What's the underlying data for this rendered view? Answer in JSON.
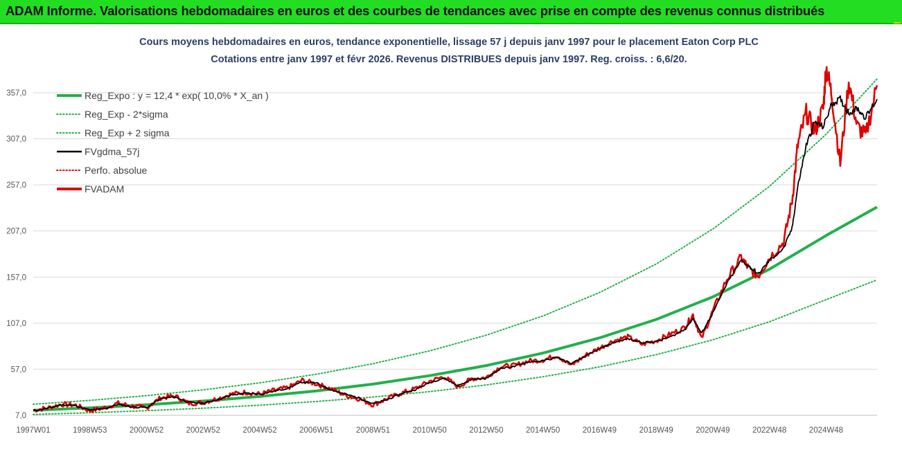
{
  "header": {
    "title": "ADAM Informe. Valorisations hebdomadaires en euros et des courbes de tendances avec prise en compte des revenus connus distribués"
  },
  "chart_data": {
    "type": "line",
    "title_lines": [
      "Cours moyens hebdomadaires en euros, tendance exponentielle, lissage 57 j depuis janv 1997 pour le placement Eaton Corp PLC",
      "Cotations entre janv 1997 et févr 2026. Revenus DISTRIBUES depuis janv 1997. Reg. croiss. : 6,6/20."
    ],
    "y_ticks": [
      "7,0",
      "57,0",
      "107,0",
      "157,0",
      "207,0",
      "257,0",
      "307,0",
      "357,0"
    ],
    "ylim": [
      7,
      390
    ],
    "x_ticks": [
      {
        "label": "1997W01",
        "t": 1997.0
      },
      {
        "label": "1998W53",
        "t": 1999.0
      },
      {
        "label": "2000W52",
        "t": 2001.0
      },
      {
        "label": "2002W52",
        "t": 2003.0
      },
      {
        "label": "2004W52",
        "t": 2005.0
      },
      {
        "label": "2006W51",
        "t": 2007.0
      },
      {
        "label": "2008W51",
        "t": 2009.0
      },
      {
        "label": "2010W50",
        "t": 2011.0
      },
      {
        "label": "2012W50",
        "t": 2013.0
      },
      {
        "label": "2014W50",
        "t": 2015.0
      },
      {
        "label": "2016W49",
        "t": 2017.0
      },
      {
        "label": "2018W49",
        "t": 2019.0
      },
      {
        "label": "2020W49",
        "t": 2021.0
      },
      {
        "label": "2022W48",
        "t": 2023.0
      },
      {
        "label": "2024W48",
        "t": 2025.0
      }
    ],
    "xlim": [
      1997.0,
      2026.8
    ],
    "grid": "horizontal",
    "legend_position": "top-left",
    "legend": [
      {
        "label": "Reg_Expo : y = 12,4 * exp( 10,0% *  X_an )",
        "color": "#22b04b",
        "style": "solid-thick"
      },
      {
        "label": "Reg_Exp - 2*sigma",
        "color": "#22b04b",
        "style": "dotted"
      },
      {
        "label": "Reg_Exp + 2 sigma",
        "color": "#22b04b",
        "style": "dotted"
      },
      {
        "label": "FVgdma_57j",
        "color": "#000000",
        "style": "solid"
      },
      {
        "label": "Perfo. absolue",
        "color": "#e00000",
        "style": "dotted"
      },
      {
        "label": "FVADAM",
        "color": "#e00000",
        "style": "solid-thick"
      }
    ],
    "series": [
      {
        "name": "Reg_Expo : y = 12,4 * exp( 10,0% *  X_an )",
        "x": [
          1997.0,
          1999.0,
          2001.0,
          2003.0,
          2005.0,
          2007.0,
          2009.0,
          2011.0,
          2013.0,
          2015.0,
          2017.0,
          2019.0,
          2021.0,
          2023.0,
          2025.0,
          2026.8
        ],
        "y": [
          12.4,
          15.1,
          18.4,
          22.5,
          27.5,
          33.5,
          40.9,
          50.0,
          61.0,
          74.5,
          91.0,
          111.0,
          135.5,
          165.5,
          202.0,
          233.0
        ]
      },
      {
        "name": "Reg_Exp - 2*sigma",
        "x": [
          1997.0,
          1999.0,
          2001.0,
          2003.0,
          2005.0,
          2007.0,
          2009.0,
          2011.0,
          2013.0,
          2015.0,
          2017.0,
          2019.0,
          2021.0,
          2023.0,
          2025.0,
          2026.8
        ],
        "y": [
          8.0,
          9.8,
          12.0,
          14.7,
          18.0,
          22.0,
          26.8,
          32.7,
          40.0,
          48.8,
          59.6,
          72.8,
          88.9,
          108.5,
          132.5,
          154.0
        ]
      },
      {
        "name": "Reg_Exp + 2 sigma",
        "x": [
          1997.0,
          1999.0,
          2001.0,
          2003.0,
          2005.0,
          2007.0,
          2009.0,
          2011.0,
          2013.0,
          2015.0,
          2017.0,
          2019.0,
          2021.0,
          2023.0,
          2025.0,
          2026.8
        ],
        "y": [
          19.0,
          23.2,
          28.3,
          34.6,
          42.2,
          51.6,
          63.0,
          76.9,
          94.0,
          114.8,
          140.2,
          171.2,
          209.1,
          255.4,
          311.9,
          372.0
        ]
      },
      {
        "name": "FVgdma_57j",
        "x": [
          1997.0,
          1997.5,
          1998.0,
          1998.5,
          1999.0,
          1999.5,
          2000.0,
          2000.5,
          2001.0,
          2001.5,
          2002.0,
          2002.5,
          2003.0,
          2003.5,
          2004.0,
          2004.5,
          2005.0,
          2005.5,
          2006.0,
          2006.5,
          2007.0,
          2007.5,
          2008.0,
          2008.5,
          2009.0,
          2009.5,
          2010.0,
          2010.5,
          2011.0,
          2011.5,
          2012.0,
          2012.5,
          2013.0,
          2013.5,
          2014.0,
          2014.5,
          2015.0,
          2015.5,
          2016.0,
          2016.5,
          2017.0,
          2017.5,
          2018.0,
          2018.5,
          2019.0,
          2019.5,
          2020.0,
          2020.3,
          2020.6,
          2021.0,
          2021.5,
          2022.0,
          2022.3,
          2022.6,
          2023.0,
          2023.5,
          2023.8,
          2024.0,
          2024.3,
          2024.6,
          2024.9,
          2025.2,
          2025.5,
          2025.8,
          2026.1,
          2026.4,
          2026.8
        ],
        "y": [
          12.0,
          14.5,
          18.5,
          17.5,
          12.5,
          14.0,
          19.0,
          16.0,
          15.5,
          25.0,
          27.0,
          21.0,
          20.0,
          24.0,
          29.0,
          31.0,
          30.0,
          33.0,
          36.5,
          43.0,
          42.0,
          35.0,
          30.0,
          26.0,
          19.5,
          24.0,
          30.5,
          35.0,
          42.5,
          47.5,
          39.0,
          46.0,
          47.0,
          58.0,
          60.0,
          65.0,
          66.0,
          70.0,
          63.0,
          71.0,
          79.0,
          86.0,
          90.0,
          86.0,
          87.0,
          92.0,
          100.0,
          112.0,
          96.0,
          118.0,
          150.0,
          175.0,
          168.0,
          160.0,
          175.0,
          188.0,
          210.0,
          255.0,
          300.0,
          325.0,
          320.0,
          345.0,
          350.0,
          335.0,
          340.0,
          330.0,
          350.0
        ]
      },
      {
        "name": "FVADAM",
        "x": [
          1997.0,
          1997.5,
          1998.0,
          1998.5,
          1999.0,
          1999.5,
          2000.0,
          2000.5,
          2001.0,
          2001.5,
          2002.0,
          2002.5,
          2003.0,
          2003.5,
          2004.0,
          2004.5,
          2005.0,
          2005.5,
          2006.0,
          2006.5,
          2007.0,
          2007.5,
          2008.0,
          2008.5,
          2009.0,
          2009.5,
          2010.0,
          2010.5,
          2011.0,
          2011.5,
          2012.0,
          2012.5,
          2013.0,
          2013.5,
          2014.0,
          2014.5,
          2015.0,
          2015.5,
          2016.0,
          2016.5,
          2017.0,
          2017.5,
          2018.0,
          2018.5,
          2019.0,
          2019.5,
          2020.0,
          2020.3,
          2020.6,
          2021.0,
          2021.5,
          2022.0,
          2022.3,
          2022.6,
          2023.0,
          2023.5,
          2023.8,
          2024.0,
          2024.3,
          2024.6,
          2024.9,
          2025.0,
          2025.2,
          2025.5,
          2025.8,
          2026.1,
          2026.4,
          2026.8
        ],
        "y": [
          12.5,
          15.0,
          19.0,
          18.0,
          12.0,
          15.0,
          20.0,
          17.0,
          15.0,
          26.0,
          28.0,
          20.0,
          21.0,
          25.0,
          30.0,
          32.0,
          30.0,
          34.0,
          37.0,
          45.0,
          41.0,
          36.0,
          29.0,
          25.0,
          18.5,
          25.0,
          31.0,
          36.0,
          44.0,
          49.0,
          38.0,
          47.0,
          48.0,
          60.0,
          61.0,
          66.0,
          67.0,
          72.0,
          61.0,
          72.0,
          80.0,
          88.0,
          92.0,
          84.0,
          88.0,
          95.0,
          102.0,
          116.0,
          90.0,
          120.0,
          155.0,
          178.0,
          165.0,
          158.0,
          178.0,
          195.0,
          240.0,
          300.0,
          335.0,
          315.0,
          340.0,
          385.0,
          355.0,
          280.0,
          370.0,
          320.0,
          310.0,
          365.0
        ]
      }
    ]
  }
}
